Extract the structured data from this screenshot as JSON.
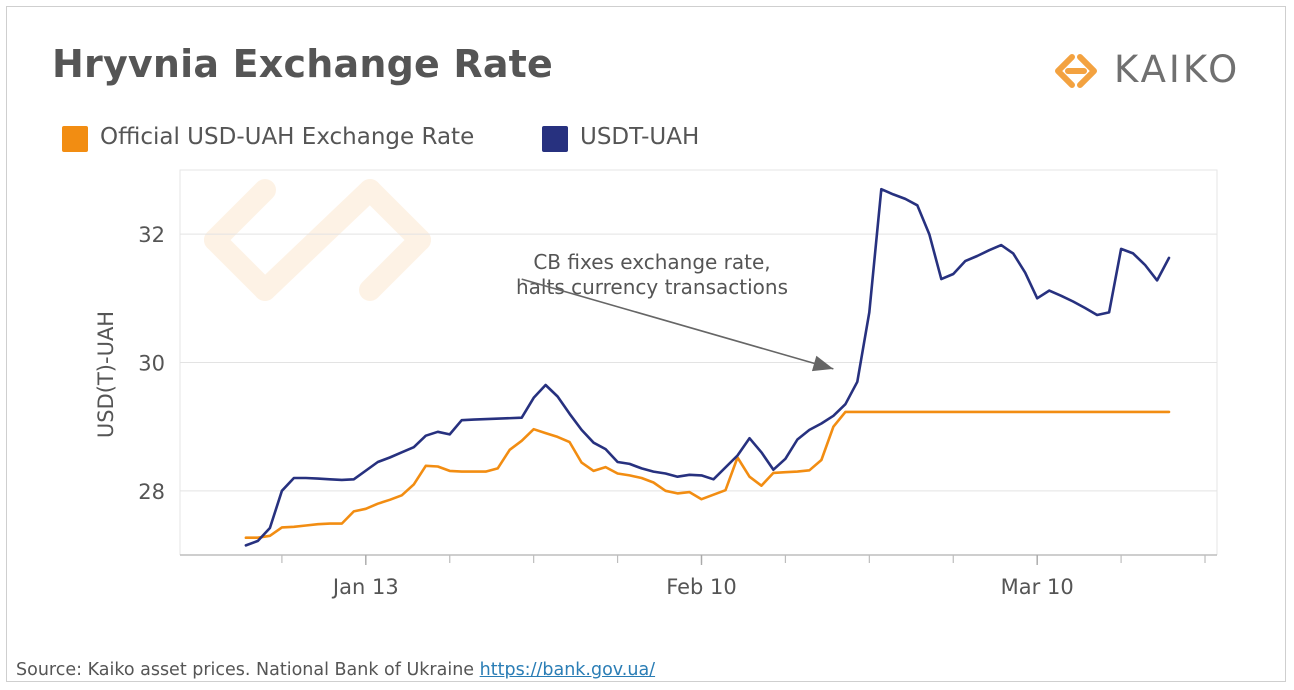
{
  "title": "Hryvnia Exchange Rate",
  "logo": {
    "text": "KAIKO",
    "icon": "kaiko-diamond-logo-icon"
  },
  "legend": [
    {
      "label": "Official USD-UAH Exchange Rate",
      "color": "#f28d12"
    },
    {
      "label": "USDT-UAH",
      "color": "#27317f"
    }
  ],
  "source": {
    "text": "Source: Kaiko asset prices. National Bank of Ukraine",
    "link": "https://bank.gov.ua/"
  },
  "chart_data": {
    "type": "line",
    "ylabel": "USD(T)-UAH",
    "xlabel": "",
    "ylim": [
      27.0,
      33.0
    ],
    "xlim": [
      -15.5,
      71
    ],
    "yticks": [
      28,
      30,
      32
    ],
    "xticks": [
      {
        "x": 0,
        "label": "Jan 13"
      },
      {
        "x": 28,
        "label": "Feb 10"
      },
      {
        "x": 56,
        "label": "Mar 10"
      }
    ],
    "grid": true,
    "annotation": {
      "lines": [
        "CB fixes exchange rate,",
        "halts currency transactions"
      ],
      "arrow_from": [
        13,
        31.3
      ],
      "arrow_to": [
        39,
        29.9
      ]
    },
    "series": [
      {
        "name": "USDT-UAH",
        "color": "#27317f",
        "x": [
          -10,
          -9,
          -8,
          -7,
          -6,
          -5,
          -4,
          -3,
          -2,
          -1,
          1,
          2,
          3,
          4,
          5,
          6,
          7,
          8,
          9,
          13,
          14,
          15,
          16,
          17,
          18,
          19,
          20,
          21,
          22,
          23,
          24,
          25,
          26,
          27,
          28,
          29,
          31,
          32,
          33,
          34,
          35,
          36,
          37,
          38,
          39,
          40,
          41,
          42,
          43,
          44,
          45,
          46,
          47,
          48,
          49,
          50,
          51,
          52,
          53,
          54,
          55,
          56,
          57,
          58,
          59,
          60,
          61,
          62,
          63,
          64,
          65,
          66,
          67
        ],
        "values": [
          27.15,
          27.22,
          27.42,
          28.0,
          28.2,
          28.2,
          28.19,
          28.18,
          28.17,
          28.18,
          28.45,
          28.52,
          28.6,
          28.68,
          28.86,
          28.92,
          28.88,
          29.1,
          29.11,
          29.14,
          29.45,
          29.65,
          29.47,
          29.2,
          28.95,
          28.75,
          28.65,
          28.45,
          28.42,
          28.35,
          28.3,
          28.27,
          28.22,
          28.25,
          28.24,
          28.18,
          28.55,
          28.82,
          28.6,
          28.33,
          28.5,
          28.8,
          28.95,
          29.05,
          29.17,
          29.35,
          29.7,
          30.78,
          32.7,
          32.62,
          32.55,
          32.45,
          32.0,
          31.3,
          31.38,
          31.58,
          31.66,
          31.75,
          31.83,
          31.7,
          31.4,
          31.0,
          31.12,
          31.04,
          30.95,
          30.85,
          30.74,
          30.78,
          31.77,
          31.7,
          31.52,
          31.28,
          31.63
        ]
      },
      {
        "name": "Official USD-UAH Exchange Rate",
        "color": "#f28d12",
        "x": [
          -10,
          -9,
          -8,
          -7,
          -6,
          -5,
          -4,
          -3,
          -2,
          -1,
          0,
          1,
          2,
          3,
          4,
          5,
          6,
          7,
          8,
          9,
          10,
          11,
          12,
          13,
          14,
          15,
          16,
          17,
          18,
          19,
          20,
          21,
          22,
          23,
          24,
          25,
          26,
          27,
          28,
          29,
          30,
          31,
          32,
          33,
          34,
          35,
          36,
          37,
          38,
          39,
          40,
          41,
          42,
          67
        ],
        "values": [
          27.27,
          27.27,
          27.3,
          27.43,
          27.44,
          27.46,
          27.48,
          27.49,
          27.49,
          27.68,
          27.72,
          27.8,
          27.86,
          27.93,
          28.1,
          28.39,
          28.38,
          28.31,
          28.3,
          28.3,
          28.3,
          28.35,
          28.64,
          28.78,
          28.96,
          28.9,
          28.84,
          28.76,
          28.44,
          28.31,
          28.37,
          28.27,
          28.24,
          28.2,
          28.13,
          28.0,
          27.96,
          27.98,
          27.87,
          27.94,
          28.01,
          28.52,
          28.22,
          28.08,
          28.28,
          28.29,
          28.3,
          28.32,
          28.48,
          29.0,
          29.23,
          29.23,
          29.23,
          29.23
        ]
      }
    ]
  }
}
